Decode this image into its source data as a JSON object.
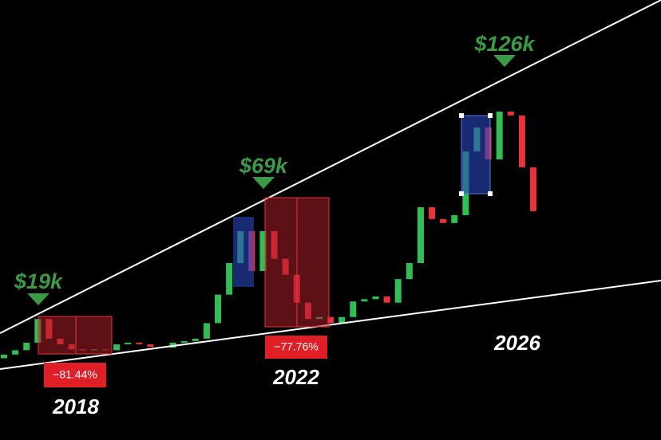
{
  "chart_data": {
    "type": "candlestick",
    "log_scale": true,
    "ylim": [
      7,
      240
    ],
    "up_color": "#2fbf55",
    "down_color": "#e8333a",
    "open": [
      13.5,
      13.9,
      14.4,
      15.3,
      18.5,
      15.8,
      15.1,
      14.5,
      14.4,
      14.5,
      14.4,
      15.1,
      15.3,
      15.1,
      14.8,
      14.7,
      15.3,
      15.5,
      15.8,
      17.9,
      22.5,
      29.0,
      37.5,
      27.2,
      37.5,
      30.0,
      26.4,
      21.1,
      18.5,
      18.8,
      17.9,
      18.8,
      21.3,
      21.7,
      22.2,
      21.1,
      25.5,
      29.0,
      45.4,
      41.3,
      40.0,
      42.6,
      71.1,
      86.2,
      66.7,
      97.9,
      94.9,
      62.6
    ],
    "close": [
      13.9,
      14.4,
      15.3,
      18.5,
      15.8,
      15.1,
      14.5,
      14.4,
      14.5,
      14.4,
      15.1,
      15.3,
      15.1,
      14.8,
      14.7,
      15.3,
      15.5,
      15.8,
      17.9,
      22.5,
      29.0,
      37.5,
      27.2,
      37.5,
      30.0,
      26.4,
      21.1,
      18.5,
      18.8,
      17.9,
      18.8,
      21.3,
      21.7,
      22.2,
      21.1,
      25.5,
      29.0,
      45.4,
      41.3,
      40.0,
      42.6,
      71.1,
      86.2,
      66.7,
      97.9,
      94.9,
      62.6,
      44.0
    ],
    "annotations": {
      "peaks": [
        "$19k",
        "$69k",
        "$126k"
      ],
      "drawdowns": [
        "−81.44%",
        "−77.76%"
      ],
      "years": [
        "2018",
        "2022",
        "2026"
      ]
    }
  }
}
